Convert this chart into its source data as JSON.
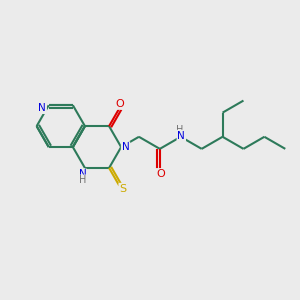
{
  "background_color": "#ebebeb",
  "bond_color": "#2d7a5a",
  "bond_width": 1.5,
  "atom_colors": {
    "N": "#0000dd",
    "O": "#dd0000",
    "S": "#ccaa00",
    "H": "#707070"
  },
  "figsize": [
    3.0,
    3.0
  ],
  "dpi": 100
}
